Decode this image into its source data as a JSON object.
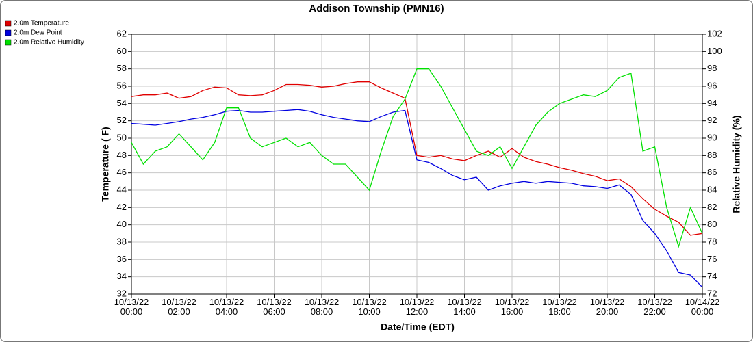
{
  "chart_data": {
    "type": "line",
    "title": "Addison Township (PMN16)",
    "x_label": "Date/Time (EDT)",
    "y_label": "Temperature ( F)",
    "y2_label": "Relative Humidity (%)",
    "x": [
      "10/13/22 00:00",
      "10/13/22 00:30",
      "10/13/22 01:00",
      "10/13/22 01:30",
      "10/13/22 02:00",
      "10/13/22 02:30",
      "10/13/22 03:00",
      "10/13/22 03:30",
      "10/13/22 04:00",
      "10/13/22 04:30",
      "10/13/22 05:00",
      "10/13/22 05:30",
      "10/13/22 06:00",
      "10/13/22 06:30",
      "10/13/22 07:00",
      "10/13/22 07:30",
      "10/13/22 08:00",
      "10/13/22 08:30",
      "10/13/22 09:00",
      "10/13/22 09:30",
      "10/13/22 10:00",
      "10/13/22 10:30",
      "10/13/22 11:00",
      "10/13/22 11:30",
      "10/13/22 12:00",
      "10/13/22 12:30",
      "10/13/22 13:00",
      "10/13/22 13:30",
      "10/13/22 14:00",
      "10/13/22 14:30",
      "10/13/22 15:00",
      "10/13/22 15:30",
      "10/13/22 16:00",
      "10/13/22 16:30",
      "10/13/22 17:00",
      "10/13/22 17:30",
      "10/13/22 18:00",
      "10/13/22 18:30",
      "10/13/22 19:00",
      "10/13/22 19:30",
      "10/13/22 20:00",
      "10/13/22 20:30",
      "10/13/22 21:00",
      "10/13/22 21:30",
      "10/13/22 22:00",
      "10/13/22 22:30",
      "10/13/22 23:00",
      "10/13/22 23:30",
      "10/14/22 00:00"
    ],
    "series": [
      {
        "name": "2.0m Temperature",
        "color": "#e00000",
        "values": [
          54.8,
          55.0,
          55.0,
          55.2,
          54.6,
          54.8,
          55.5,
          55.9,
          55.8,
          55.0,
          54.9,
          55.0,
          55.5,
          56.2,
          56.2,
          56.1,
          55.9,
          56.0,
          56.3,
          56.5,
          56.5,
          55.8,
          55.2,
          54.6,
          48.0,
          47.8,
          48.0,
          47.6,
          47.4,
          48.0,
          48.5,
          47.8,
          48.8,
          47.8,
          47.3,
          47.0,
          46.6,
          46.3,
          45.9,
          45.6,
          45.1,
          45.3,
          44.4,
          43.0,
          41.8,
          41.0,
          40.3,
          38.8,
          39.0
        ]
      },
      {
        "name": "2.0m Dew Point",
        "color": "#0000e0",
        "values": [
          51.7,
          51.6,
          51.5,
          51.7,
          51.9,
          52.2,
          52.4,
          52.7,
          53.1,
          53.2,
          53.0,
          53.0,
          53.1,
          53.2,
          53.3,
          53.1,
          52.7,
          52.4,
          52.2,
          52.0,
          51.9,
          52.5,
          53.0,
          53.2,
          47.5,
          47.2,
          46.5,
          45.7,
          45.2,
          45.5,
          44.0,
          44.5,
          44.8,
          45.0,
          44.8,
          45.0,
          44.9,
          44.8,
          44.5,
          44.4,
          44.2,
          44.6,
          43.5,
          40.5,
          39.0,
          37.0,
          34.5,
          34.2,
          32.8
        ]
      },
      {
        "name": "2.0m Relative Humidity",
        "color": "#00e000",
        "axis": "y2",
        "values": [
          89.5,
          87.0,
          88.5,
          89.0,
          90.5,
          89.0,
          87.5,
          89.5,
          93.5,
          93.5,
          90.0,
          89.0,
          89.5,
          90.0,
          89.0,
          89.5,
          88.0,
          87.0,
          87.0,
          85.5,
          84.0,
          88.5,
          92.5,
          94.5,
          98.0,
          98.0,
          96.0,
          93.5,
          91.0,
          88.5,
          88.0,
          89.0,
          86.5,
          89.0,
          91.5,
          93.0,
          94.0,
          94.5,
          95.0,
          94.8,
          95.5,
          97.0,
          97.5,
          88.5,
          89.0,
          82.0,
          77.5,
          82.0,
          79.0
        ]
      }
    ],
    "xlim": [
      "10/13/22 00:00",
      "10/14/22 00:00"
    ],
    "xticks": [
      "10/13/22 00:00",
      "10/13/22 02:00",
      "10/13/22 04:00",
      "10/13/22 06:00",
      "10/13/22 08:00",
      "10/13/22 10:00",
      "10/13/22 12:00",
      "10/13/22 14:00",
      "10/13/22 16:00",
      "10/13/22 18:00",
      "10/13/22 20:00",
      "10/13/22 22:00",
      "10/14/22 00:00"
    ],
    "ylim": [
      32,
      62
    ],
    "yticks": [
      32,
      34,
      36,
      38,
      40,
      42,
      44,
      46,
      48,
      50,
      52,
      54,
      56,
      58,
      60,
      62
    ],
    "y2lim": [
      72,
      102
    ],
    "y2ticks": [
      72,
      74,
      76,
      78,
      80,
      82,
      84,
      86,
      88,
      90,
      92,
      94,
      96,
      98,
      100,
      102
    ],
    "grid": true,
    "legend": "top-left"
  }
}
